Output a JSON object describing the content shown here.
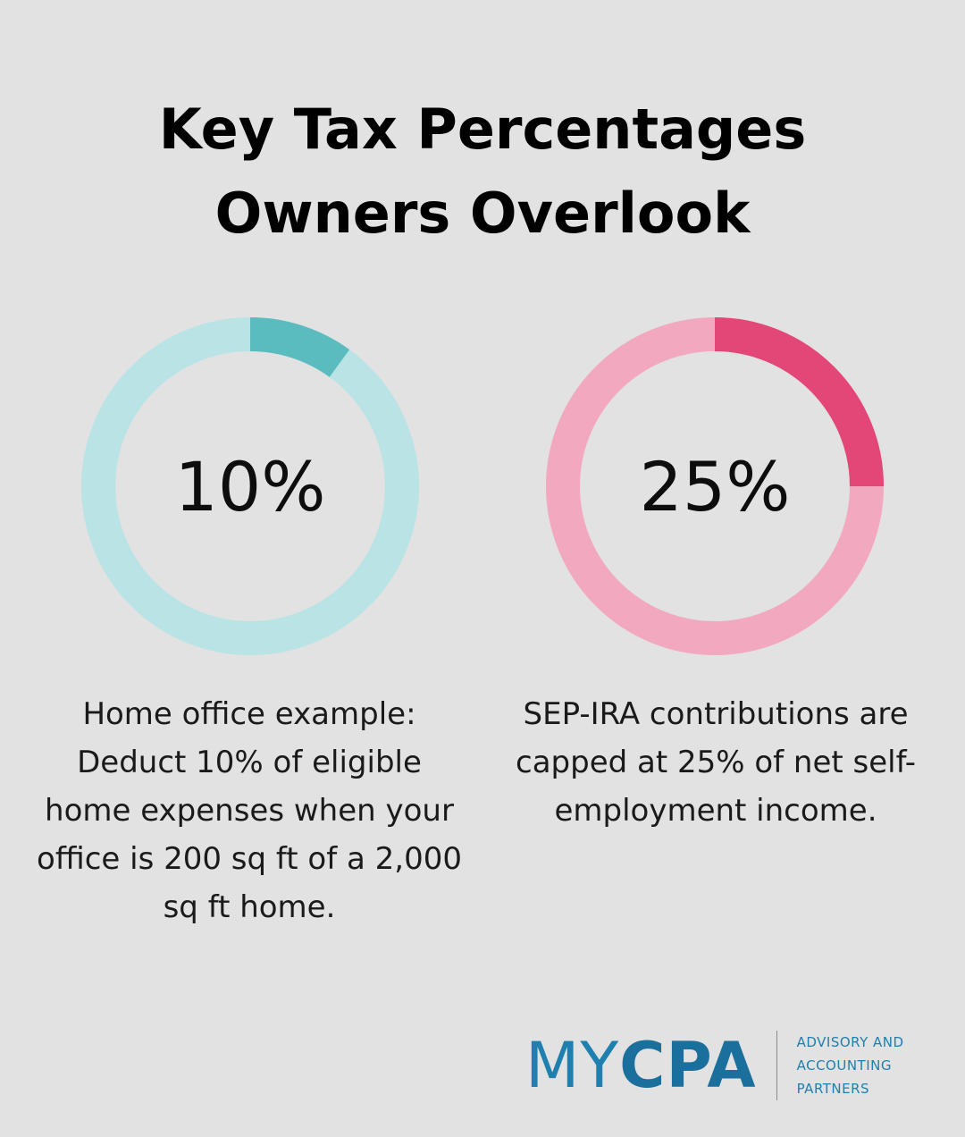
{
  "title": {
    "line1": "Key Tax Percentages",
    "line2": "Owners Overlook"
  },
  "chart_data": [
    {
      "type": "pie",
      "variant": "donut",
      "value_label": "10%",
      "values": [
        10,
        90
      ],
      "colors": {
        "filled": "#5bbcc0",
        "track": "#b9e3e5"
      },
      "description": "Home office example: Deduct 10% of eligible home expenses when your office is 200 sq ft of a 2,000 sq ft home."
    },
    {
      "type": "pie",
      "variant": "donut",
      "value_label": "25%",
      "values": [
        25,
        75
      ],
      "colors": {
        "filled": "#e34777",
        "track": "#f2a9bf"
      },
      "description": "SEP-IRA contributions are capped at 25% of net self-employment income."
    }
  ],
  "logo": {
    "word_my": "MY",
    "word_cpa": "CPA",
    "tagline": [
      "ADVISORY AND",
      "ACCOUNTING",
      "PARTNERS"
    ],
    "color": "#1f7fae"
  },
  "background": "#e1e2e1"
}
